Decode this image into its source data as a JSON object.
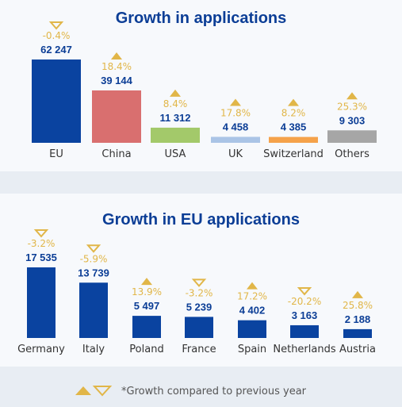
{
  "colors": {
    "title": "#0c3e96",
    "value": "#0c3e96",
    "growth": "#e1b648",
    "category": "#333333"
  },
  "footnote": {
    "text": "*Growth compared to previous year",
    "icons": [
      "triangle-up-icon",
      "triangle-down-icon"
    ]
  },
  "chart_data": [
    {
      "type": "bar",
      "title": "Growth in applications",
      "categories": [
        "EU",
        "China",
        "USA",
        "UK",
        "Switzerland",
        "Others"
      ],
      "values": [
        62247,
        39144,
        11312,
        4458,
        4385,
        9303
      ],
      "value_labels": [
        "62 247",
        "39 144",
        "11 312",
        "4 458",
        "4 385",
        "9 303"
      ],
      "growth_labels": [
        "-0.4%",
        "18.4%",
        "8.4%",
        "17.8%",
        "8.2%",
        "25.3%"
      ],
      "growth_direction": [
        "down",
        "up",
        "up",
        "up",
        "up",
        "up"
      ],
      "bar_colors": [
        "#0a43a0",
        "#d96f6f",
        "#a3c96a",
        "#aac4e6",
        "#f5a24a",
        "#a6a6a6"
      ],
      "ylim": [
        0,
        62247
      ]
    },
    {
      "type": "bar",
      "title": "Growth in EU applications",
      "categories": [
        "Germany",
        "Italy",
        "Poland",
        "France",
        "Spain",
        "Netherlands",
        "Austria"
      ],
      "values": [
        17535,
        13739,
        5497,
        5239,
        4402,
        3163,
        2188
      ],
      "value_labels": [
        "17 535",
        "13 739",
        "5 497",
        "5 239",
        "4 402",
        "3 163",
        "2 188"
      ],
      "growth_labels": [
        "-3.2%",
        "-5.9%",
        "13.9%",
        "-3.2%",
        "17.2%",
        "-20.2%",
        "25.8%"
      ],
      "growth_direction": [
        "down",
        "down",
        "up",
        "down",
        "up",
        "down",
        "up"
      ],
      "bar_colors": [
        "#0a43a0",
        "#0a43a0",
        "#0a43a0",
        "#0a43a0",
        "#0a43a0",
        "#0a43a0",
        "#0a43a0"
      ],
      "ylim": [
        0,
        17535
      ]
    }
  ]
}
